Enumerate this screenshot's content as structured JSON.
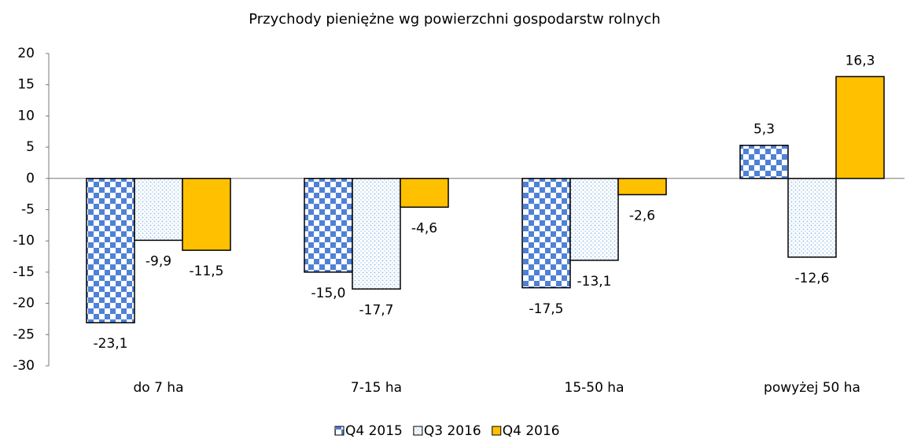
{
  "chart_data": {
    "type": "bar",
    "title": "Przychody pieniężne wg powierzchni gospodarstw rolnych",
    "categories": [
      "do 7 ha",
      "7-15 ha",
      "15-50 ha",
      "powyżej 50 ha"
    ],
    "series": [
      {
        "name": "Q4 2015",
        "color": "#4f81d6",
        "values": [
          -23.1,
          -15.0,
          -17.5,
          5.3
        ],
        "value_labels": [
          "-23,1",
          "-15,0",
          "-17,5",
          "5,3"
        ]
      },
      {
        "name": "Q3 2016",
        "color": "#9ec3ea",
        "values": [
          -9.9,
          -17.7,
          -13.1,
          -12.6
        ],
        "value_labels": [
          "-9,9",
          "-17,7",
          "-13,1",
          "-12,6"
        ]
      },
      {
        "name": "Q4 2016",
        "color": "#ffc000",
        "values": [
          -11.5,
          -4.6,
          -2.6,
          16.3
        ],
        "value_labels": [
          "-11,5",
          "-4,6",
          "-2,6",
          "16,3"
        ]
      }
    ],
    "ylim": [
      -30,
      20
    ],
    "yticks": [
      -30,
      -25,
      -20,
      -15,
      -10,
      -5,
      0,
      5,
      10,
      15,
      20
    ],
    "legend": "bottom"
  }
}
